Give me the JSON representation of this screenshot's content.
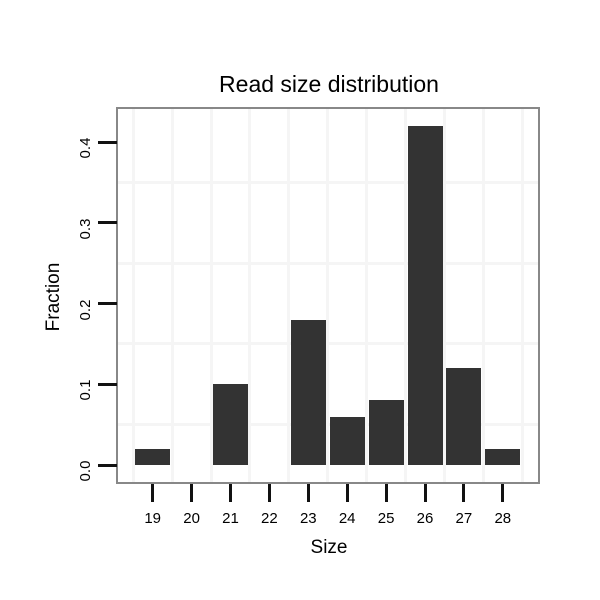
{
  "chart_data": {
    "type": "bar",
    "title": "Read size distribution",
    "xlabel": "Size",
    "ylabel": "Fraction",
    "categories": [
      "19",
      "20",
      "21",
      "22",
      "23",
      "24",
      "25",
      "26",
      "27",
      "28"
    ],
    "values": [
      0.02,
      0,
      0.1,
      0,
      0.18,
      0.06,
      0.08,
      0.42,
      0.12,
      0.02
    ],
    "y_tick_values": [
      0.0,
      0.1,
      0.2,
      0.3,
      0.4
    ],
    "y_tick_labels": [
      "0.0",
      "0.1",
      "0.2",
      "0.3",
      "0.4"
    ],
    "ylim": [
      0,
      0.444
    ],
    "grid": "faint minor gridlines only (between categories and at 0.05 steps)",
    "legend_position": "none",
    "colors": {
      "bar": "#333333",
      "panel_border": "#888888",
      "gridline": "#f5f5f5",
      "tick": "#111111",
      "background": "#ffffff",
      "text": "#000000"
    }
  }
}
